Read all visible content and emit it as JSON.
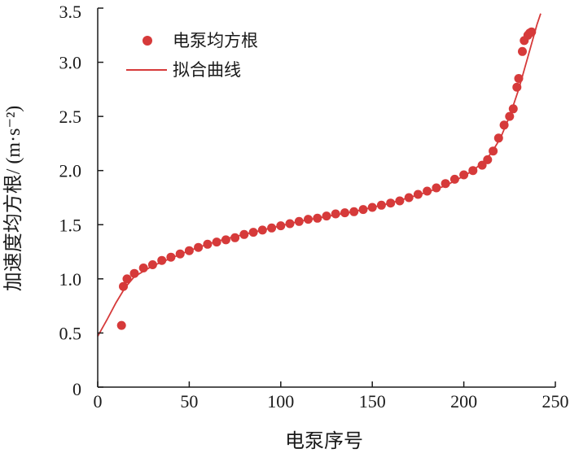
{
  "chart_data": {
    "type": "scatter",
    "xlabel": "电泵序号",
    "ylabel": "加速度均方根/ (m·s⁻²)",
    "xlim": [
      0,
      250
    ],
    "ylim": [
      0,
      3.5
    ],
    "x_ticks": [
      "0",
      "50",
      "100",
      "150",
      "200",
      "250"
    ],
    "y_ticks": [
      "0",
      "0.5",
      "1.0",
      "1.5",
      "2.0",
      "2.5",
      "3.0",
      "3.5"
    ],
    "grid": false,
    "legend_position": "top-left",
    "colors": {
      "points": "#d63a3a",
      "fit": "#d63a3a",
      "axis": "#1a1a1a"
    },
    "series": [
      {
        "name": "电泵均方根",
        "kind": "points",
        "x": [
          13,
          14,
          16,
          20,
          25,
          30,
          35,
          40,
          45,
          50,
          55,
          60,
          65,
          70,
          75,
          80,
          85,
          90,
          95,
          100,
          105,
          110,
          115,
          120,
          125,
          130,
          135,
          140,
          145,
          150,
          155,
          160,
          165,
          170,
          175,
          180,
          185,
          190,
          195,
          200,
          205,
          210,
          213,
          216,
          219,
          222,
          225,
          227,
          229,
          230,
          232,
          233,
          235,
          236,
          237
        ],
        "y": [
          0.57,
          0.93,
          1.0,
          1.05,
          1.1,
          1.13,
          1.17,
          1.2,
          1.23,
          1.26,
          1.29,
          1.32,
          1.34,
          1.36,
          1.38,
          1.41,
          1.43,
          1.45,
          1.47,
          1.49,
          1.51,
          1.53,
          1.55,
          1.56,
          1.58,
          1.6,
          1.61,
          1.62,
          1.64,
          1.66,
          1.68,
          1.7,
          1.72,
          1.75,
          1.78,
          1.81,
          1.84,
          1.88,
          1.92,
          1.96,
          2.0,
          2.05,
          2.1,
          2.18,
          2.3,
          2.42,
          2.5,
          2.57,
          2.77,
          2.85,
          3.1,
          3.2,
          3.25,
          3.27,
          3.28
        ]
      },
      {
        "name": "拟合曲线",
        "kind": "line",
        "x": [
          0,
          5,
          10,
          15,
          20,
          30,
          40,
          50,
          60,
          70,
          80,
          90,
          100,
          110,
          120,
          130,
          140,
          150,
          160,
          170,
          180,
          190,
          200,
          205,
          210,
          215,
          220,
          225,
          230,
          235,
          240,
          242
        ],
        "y": [
          0.47,
          0.62,
          0.78,
          0.92,
          1.02,
          1.12,
          1.19,
          1.26,
          1.32,
          1.37,
          1.41,
          1.45,
          1.49,
          1.53,
          1.56,
          1.59,
          1.62,
          1.66,
          1.7,
          1.75,
          1.8,
          1.86,
          1.95,
          2.0,
          2.07,
          2.16,
          2.3,
          2.5,
          2.75,
          3.05,
          3.35,
          3.45
        ]
      }
    ]
  }
}
